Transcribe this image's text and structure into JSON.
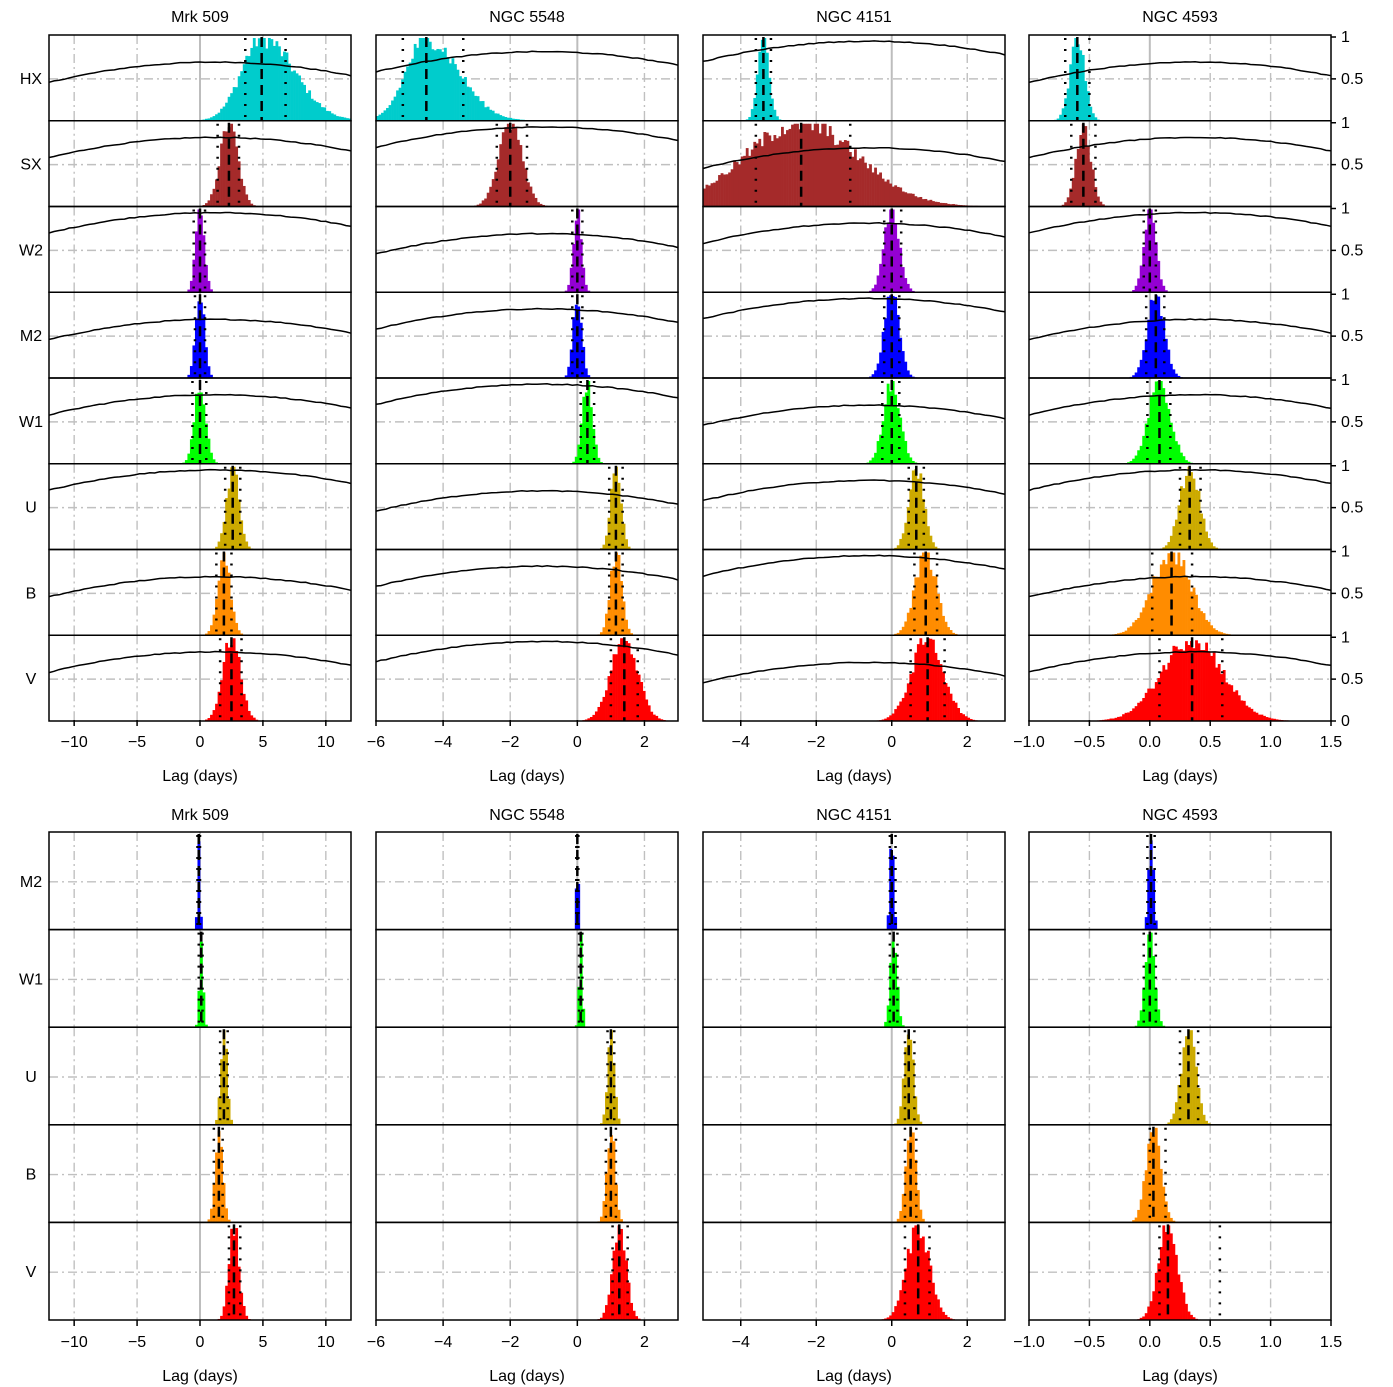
{
  "chart_data": {
    "type": "histogram-grid",
    "xlabel": "Lag (days)",
    "right_axis_ticks": [
      "0",
      "0.5",
      "1"
    ],
    "colors": {
      "HX": "#00cccc",
      "SX": "#a52a2a",
      "W2": "#9400d3",
      "M2": "#0000ff",
      "W1": "#00ff00",
      "U": "#ccaa00",
      "B": "#ff8c00",
      "V": "#ff0000"
    },
    "objects": [
      {
        "name": "Mrk 509",
        "xlim": [
          -12,
          12
        ],
        "xticks": [
          -10,
          -5,
          0,
          5,
          10
        ],
        "xtick_labels": [
          "−10",
          "−5",
          "0",
          "5",
          "10"
        ],
        "gridlines": [
          -10,
          -5,
          5,
          10
        ]
      },
      {
        "name": "NGC 5548",
        "xlim": [
          -6,
          3
        ],
        "xticks": [
          -6,
          -4,
          -2,
          0,
          2
        ],
        "xtick_labels": [
          "−6",
          "−4",
          "−2",
          "0",
          "2"
        ],
        "gridlines": [
          -4,
          -2,
          2
        ]
      },
      {
        "name": "NGC 4151",
        "xlim": [
          -5,
          3
        ],
        "xticks": [
          -4,
          -2,
          0,
          2
        ],
        "xtick_labels": [
          "−4",
          "−2",
          "0",
          "2"
        ],
        "gridlines": [
          -4,
          -2,
          2
        ]
      },
      {
        "name": "NGC 4593",
        "xlim": [
          -1,
          1.5
        ],
        "xticks": [
          -1,
          -0.5,
          0,
          0.5,
          1,
          1.5
        ],
        "xtick_labels": [
          "−1.0",
          "−0.5",
          "0.0",
          "0.5",
          "1.0",
          "1.5"
        ],
        "gridlines": [
          -0.5,
          0.5,
          1.0
        ]
      }
    ],
    "top": {
      "bands": [
        "HX",
        "SX",
        "W2",
        "M2",
        "W1",
        "U",
        "B",
        "V"
      ],
      "lags": {
        "Mrk 509": {
          "HX": {
            "med": 4.9,
            "lo": 3.6,
            "hi": 6.8,
            "w": 1.6,
            "skew": 1.6
          },
          "SX": {
            "med": 2.3,
            "lo": 1.4,
            "hi": 3.1,
            "w": 0.7
          },
          "W2": {
            "med": 0.0,
            "lo": -0.5,
            "hi": 0.4,
            "w": 0.35
          },
          "M2": {
            "med": 0.0,
            "lo": -0.4,
            "hi": 0.4,
            "w": 0.35
          },
          "W1": {
            "med": 0.0,
            "lo": -0.6,
            "hi": 0.5,
            "w": 0.45
          },
          "U": {
            "med": 2.6,
            "lo": 2.0,
            "hi": 3.2,
            "w": 0.5
          },
          "B": {
            "med": 1.9,
            "lo": 1.3,
            "hi": 2.5,
            "w": 0.5
          },
          "V": {
            "med": 2.5,
            "lo": 1.6,
            "hi": 3.3,
            "w": 0.7
          }
        },
        "NGC 5548": {
          "HX": {
            "med": -4.5,
            "lo": -5.2,
            "hi": -3.4,
            "w": 0.6,
            "skew": 1.6
          },
          "SX": {
            "med": -2.0,
            "lo": -2.4,
            "hi": -1.5,
            "w": 0.35
          },
          "W2": {
            "med": 0.0,
            "lo": -0.15,
            "hi": 0.15,
            "w": 0.12
          },
          "M2": {
            "med": 0.0,
            "lo": -0.15,
            "hi": 0.15,
            "w": 0.13
          },
          "W1": {
            "med": 0.3,
            "lo": 0.1,
            "hi": 0.5,
            "w": 0.15
          },
          "U": {
            "med": 1.15,
            "lo": 0.95,
            "hi": 1.35,
            "w": 0.15
          },
          "B": {
            "med": 1.15,
            "lo": 0.95,
            "hi": 1.35,
            "w": 0.17
          },
          "V": {
            "med": 1.4,
            "lo": 1.0,
            "hi": 1.8,
            "w": 0.4
          }
        },
        "NGC 4151": {
          "HX": {
            "med": -3.4,
            "lo": -3.6,
            "hi": -3.2,
            "w": 0.15
          },
          "SX": {
            "med": -2.4,
            "lo": -3.6,
            "hi": -1.1,
            "w": 1.5
          },
          "W2": {
            "med": 0.0,
            "lo": -0.2,
            "hi": 0.25,
            "w": 0.2
          },
          "M2": {
            "med": 0.0,
            "lo": -0.2,
            "hi": 0.2,
            "w": 0.2
          },
          "W1": {
            "med": 0.0,
            "lo": -0.25,
            "hi": 0.2,
            "w": 0.22
          },
          "U": {
            "med": 0.65,
            "lo": 0.45,
            "hi": 0.85,
            "w": 0.2
          },
          "B": {
            "med": 0.9,
            "lo": 0.6,
            "hi": 1.2,
            "w": 0.28
          },
          "V": {
            "med": 0.95,
            "lo": 0.5,
            "hi": 1.4,
            "w": 0.42
          }
        },
        "NGC 4593": {
          "HX": {
            "med": -0.6,
            "lo": -0.7,
            "hi": -0.5,
            "w": 0.06
          },
          "SX": {
            "med": -0.55,
            "lo": -0.65,
            "hi": -0.45,
            "w": 0.06
          },
          "W2": {
            "med": 0.0,
            "lo": -0.05,
            "hi": 0.05,
            "w": 0.05
          },
          "M2": {
            "med": 0.05,
            "lo": -0.03,
            "hi": 0.12,
            "w": 0.07
          },
          "W1": {
            "med": 0.08,
            "lo": -0.02,
            "hi": 0.17,
            "w": 0.09
          },
          "U": {
            "med": 0.33,
            "lo": 0.25,
            "hi": 0.42,
            "w": 0.08
          },
          "B": {
            "med": 0.18,
            "lo": 0.02,
            "hi": 0.35,
            "w": 0.16
          },
          "V": {
            "med": 0.35,
            "lo": 0.08,
            "hi": 0.6,
            "w": 0.25
          }
        }
      },
      "ccf_note": "black curve: cross-correlation coefficient on right axis (0 to 1)"
    },
    "bottom": {
      "bands": [
        "M2",
        "W1",
        "U",
        "B",
        "V"
      ],
      "lags": {
        "Mrk 509": {
          "M2": {
            "med": -0.1,
            "lo": -0.2,
            "hi": 0.0,
            "w": 0.1
          },
          "W1": {
            "med": 0.1,
            "lo": -0.1,
            "hi": 0.2,
            "w": 0.15
          },
          "U": {
            "med": 1.9,
            "lo": 1.6,
            "hi": 2.2,
            "w": 0.25
          },
          "B": {
            "med": 1.5,
            "lo": 1.1,
            "hi": 1.8,
            "w": 0.3
          },
          "V": {
            "med": 2.7,
            "lo": 2.3,
            "hi": 3.2,
            "w": 0.4
          }
        },
        "NGC 5548": {
          "M2": {
            "med": 0.0,
            "lo": -0.03,
            "hi": 0.03,
            "w": 0.03
          },
          "W1": {
            "med": 0.1,
            "lo": 0.05,
            "hi": 0.15,
            "w": 0.05
          },
          "U": {
            "med": 1.0,
            "lo": 0.9,
            "hi": 1.1,
            "w": 0.1
          },
          "B": {
            "med": 1.0,
            "lo": 0.85,
            "hi": 1.15,
            "w": 0.12
          },
          "V": {
            "med": 1.25,
            "lo": 1.05,
            "hi": 1.5,
            "w": 0.2
          }
        },
        "NGC 4151": {
          "M2": {
            "med": 0.0,
            "lo": -0.05,
            "hi": 0.1,
            "w": 0.05
          },
          "W1": {
            "med": 0.05,
            "lo": -0.05,
            "hi": 0.15,
            "w": 0.09
          },
          "U": {
            "med": 0.45,
            "lo": 0.35,
            "hi": 0.6,
            "w": 0.12
          },
          "B": {
            "med": 0.5,
            "lo": 0.35,
            "hi": 0.65,
            "w": 0.13
          },
          "V": {
            "med": 0.7,
            "lo": 0.35,
            "hi": 1.0,
            "w": 0.3
          }
        },
        "NGC 4593": {
          "M2": {
            "med": 0.01,
            "lo": -0.02,
            "hi": 0.04,
            "w": 0.02
          },
          "W1": {
            "med": 0.0,
            "lo": -0.05,
            "hi": 0.05,
            "w": 0.04
          },
          "U": {
            "med": 0.32,
            "lo": 0.25,
            "hi": 0.4,
            "w": 0.06
          },
          "B": {
            "med": 0.03,
            "lo": 0.0,
            "hi": 0.13,
            "w": 0.06
          },
          "V": {
            "med": 0.15,
            "lo": 0.08,
            "hi": 0.58,
            "w": 0.08
          }
        }
      }
    }
  }
}
